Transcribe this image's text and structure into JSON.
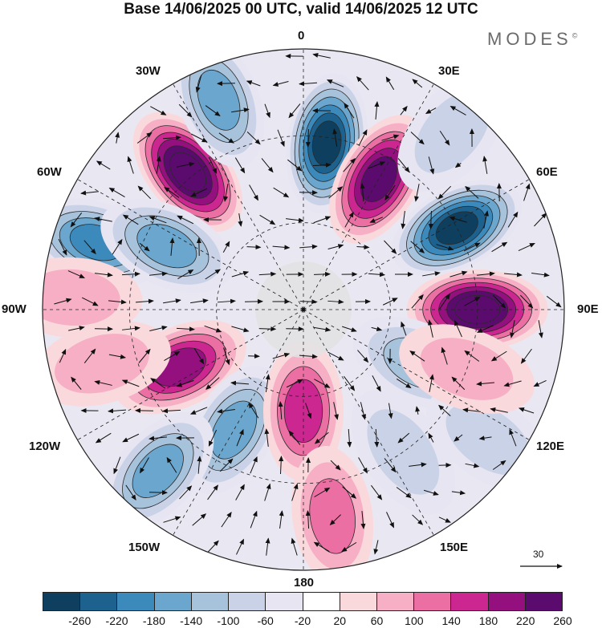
{
  "title": "Base 14/06/2025 00 UTC, valid 14/06/2025 12 UTC",
  "brand": "MODES",
  "brand_mark": "©",
  "longitude_labels": {
    "n0": "0",
    "w30": "30W",
    "e30": "30E",
    "w60": "60W",
    "e60": "60E",
    "w90": "90W",
    "e90": "90E",
    "w120": "120W",
    "e120": "120E",
    "w150": "150W",
    "e150": "150E",
    "s180": "180"
  },
  "reference_vector": "30",
  "colorbar": {
    "ticks": [
      "-260",
      "-220",
      "-180",
      "-140",
      "-100",
      "-60",
      "-20",
      "20",
      "60",
      "100",
      "140",
      "180",
      "220",
      "260"
    ],
    "colors": [
      "#0f3f5e",
      "#1d628e",
      "#3c89bc",
      "#6aa6cd",
      "#a7c2db",
      "#c9d2e6",
      "#e6e5f1",
      "#ffffff",
      "#fad9dd",
      "#f6afc5",
      "#ec6fa3",
      "#cc2690",
      "#93107e",
      "#5b0b6d"
    ]
  },
  "map": {
    "projection": "north-polar-stereographic",
    "anomalies": [
      {
        "value": -260,
        "lon": 8,
        "colat": 58
      },
      {
        "value": 260,
        "lon": -40,
        "colat": 62
      },
      {
        "value": 220,
        "lon": 30,
        "colat": 52
      },
      {
        "value": -140,
        "lon": -22,
        "colat": 78
      },
      {
        "value": -260,
        "lon": 62,
        "colat": 60
      },
      {
        "value": 260,
        "lon": 90,
        "colat": 60
      },
      {
        "value": -180,
        "lon": -72,
        "colat": 75
      },
      {
        "value": -140,
        "lon": -65,
        "colat": 52
      },
      {
        "value": 60,
        "lon": -87,
        "colat": 80
      },
      {
        "value": 180,
        "lon": -115,
        "colat": 47
      },
      {
        "value": -140,
        "lon": -150,
        "colat": 48
      },
      {
        "value": -140,
        "lon": -138,
        "colat": 75
      },
      {
        "value": 140,
        "lon": 180,
        "colat": 35
      },
      {
        "value": 100,
        "lon": 172,
        "colat": 72
      },
      {
        "value": -100,
        "lon": 115,
        "colat": 44
      },
      {
        "value": -60,
        "lon": 125,
        "colat": 78
      },
      {
        "value": -60,
        "lon": 145,
        "colat": 60
      },
      {
        "value": 60,
        "lon": 110,
        "colat": 60
      },
      {
        "value": -60,
        "lon": 40,
        "colat": 80
      },
      {
        "value": 60,
        "lon": -105,
        "colat": 72
      }
    ]
  }
}
